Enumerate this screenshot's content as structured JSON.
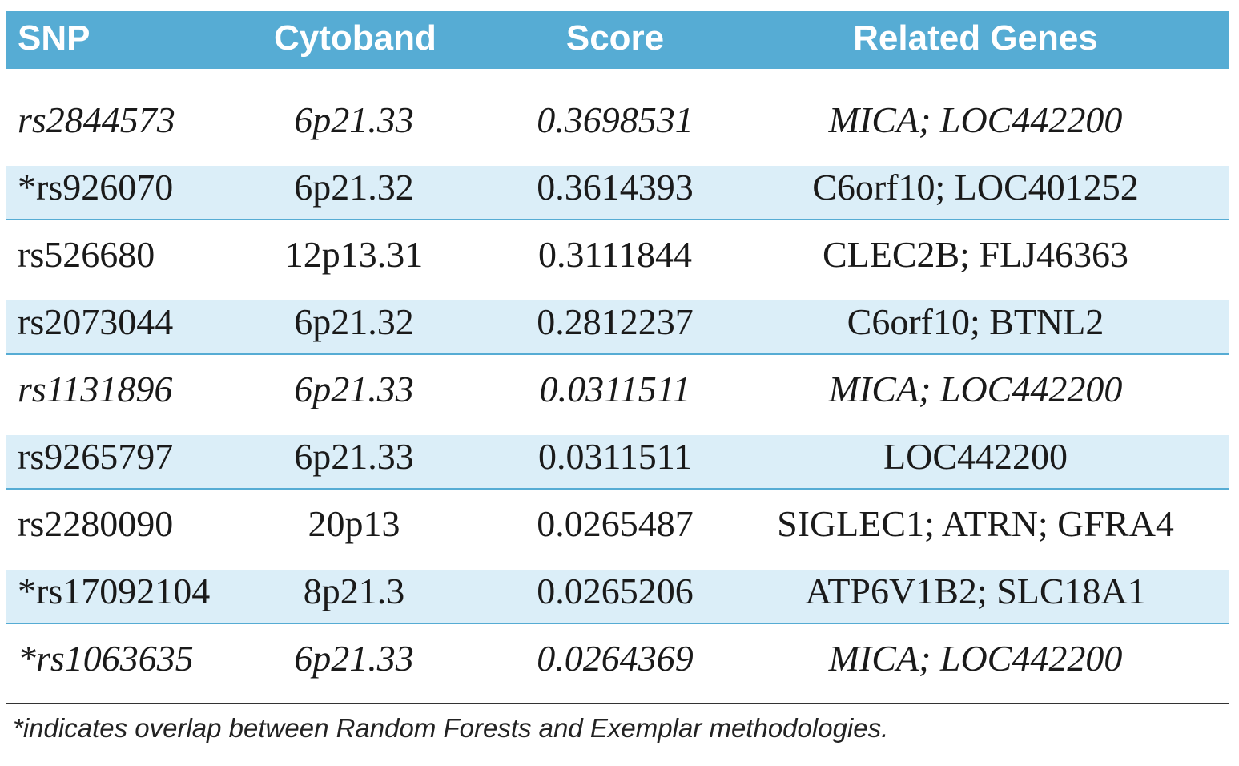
{
  "table": {
    "header": [
      "SNP",
      "Cytoband",
      "Score",
      "Related Genes"
    ],
    "rows": [
      [
        "rs2844573",
        "6p21.33",
        "0.3698531",
        "MICA; LOC442200"
      ],
      [
        "*rs926070",
        "6p21.32",
        "0.3614393",
        "C6orf10; LOC401252"
      ],
      [
        "rs526680",
        "12p13.31",
        "0.3111844",
        "CLEC2B; FLJ46363"
      ],
      [
        "rs2073044",
        "6p21.32",
        "0.2812237",
        "C6orf10; BTNL2"
      ],
      [
        "rs1131896",
        "6p21.33",
        "0.0311511",
        "MICA; LOC442200"
      ],
      [
        "rs9265797",
        "6p21.33",
        "0.0311511",
        "LOC442200"
      ],
      [
        "rs2280090",
        "20p13",
        "0.0265487",
        "SIGLEC1; ATRN; GFRA4"
      ],
      [
        "*rs17092104",
        "8p21.3",
        "0.0265206",
        "ATP6V1B2; SLC18A1"
      ],
      [
        "*rs1063635",
        "6p21.33",
        "0.0264369",
        "MICA; LOC442200"
      ]
    ],
    "footnote": "*indicates overlap between Random Forests and Exemplar methodologies."
  }
}
